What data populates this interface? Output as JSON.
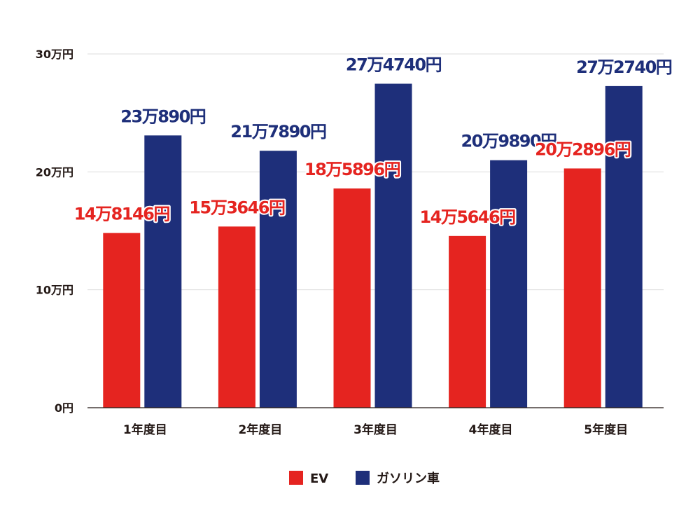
{
  "chart_data": {
    "type": "bar",
    "categories": [
      "1年度目",
      "2年度目",
      "3年度目",
      "4年度目",
      "5年度目"
    ],
    "series": [
      {
        "name": "EV",
        "color": "#e52420",
        "values": [
          148146,
          153646,
          185896,
          145646,
          202896
        ],
        "labels": [
          "14万8146円",
          "15万3646円",
          "18万5896円",
          "14万5646円",
          "20万2896円"
        ]
      },
      {
        "name": "ガソリン車",
        "color": "#1e2f7a",
        "values": [
          230890,
          217890,
          274740,
          209890,
          272740
        ],
        "labels": [
          "23万890円",
          "21万7890円",
          "27万4740円",
          "20万9890円",
          "27万2740円"
        ]
      }
    ],
    "yticks": [
      0,
      100000,
      200000,
      300000
    ],
    "ytick_labels": [
      "0円",
      "10万円",
      "20万円",
      "30万円"
    ],
    "ylim": [
      0,
      300000
    ],
    "grid": true,
    "legend": "bottom"
  }
}
